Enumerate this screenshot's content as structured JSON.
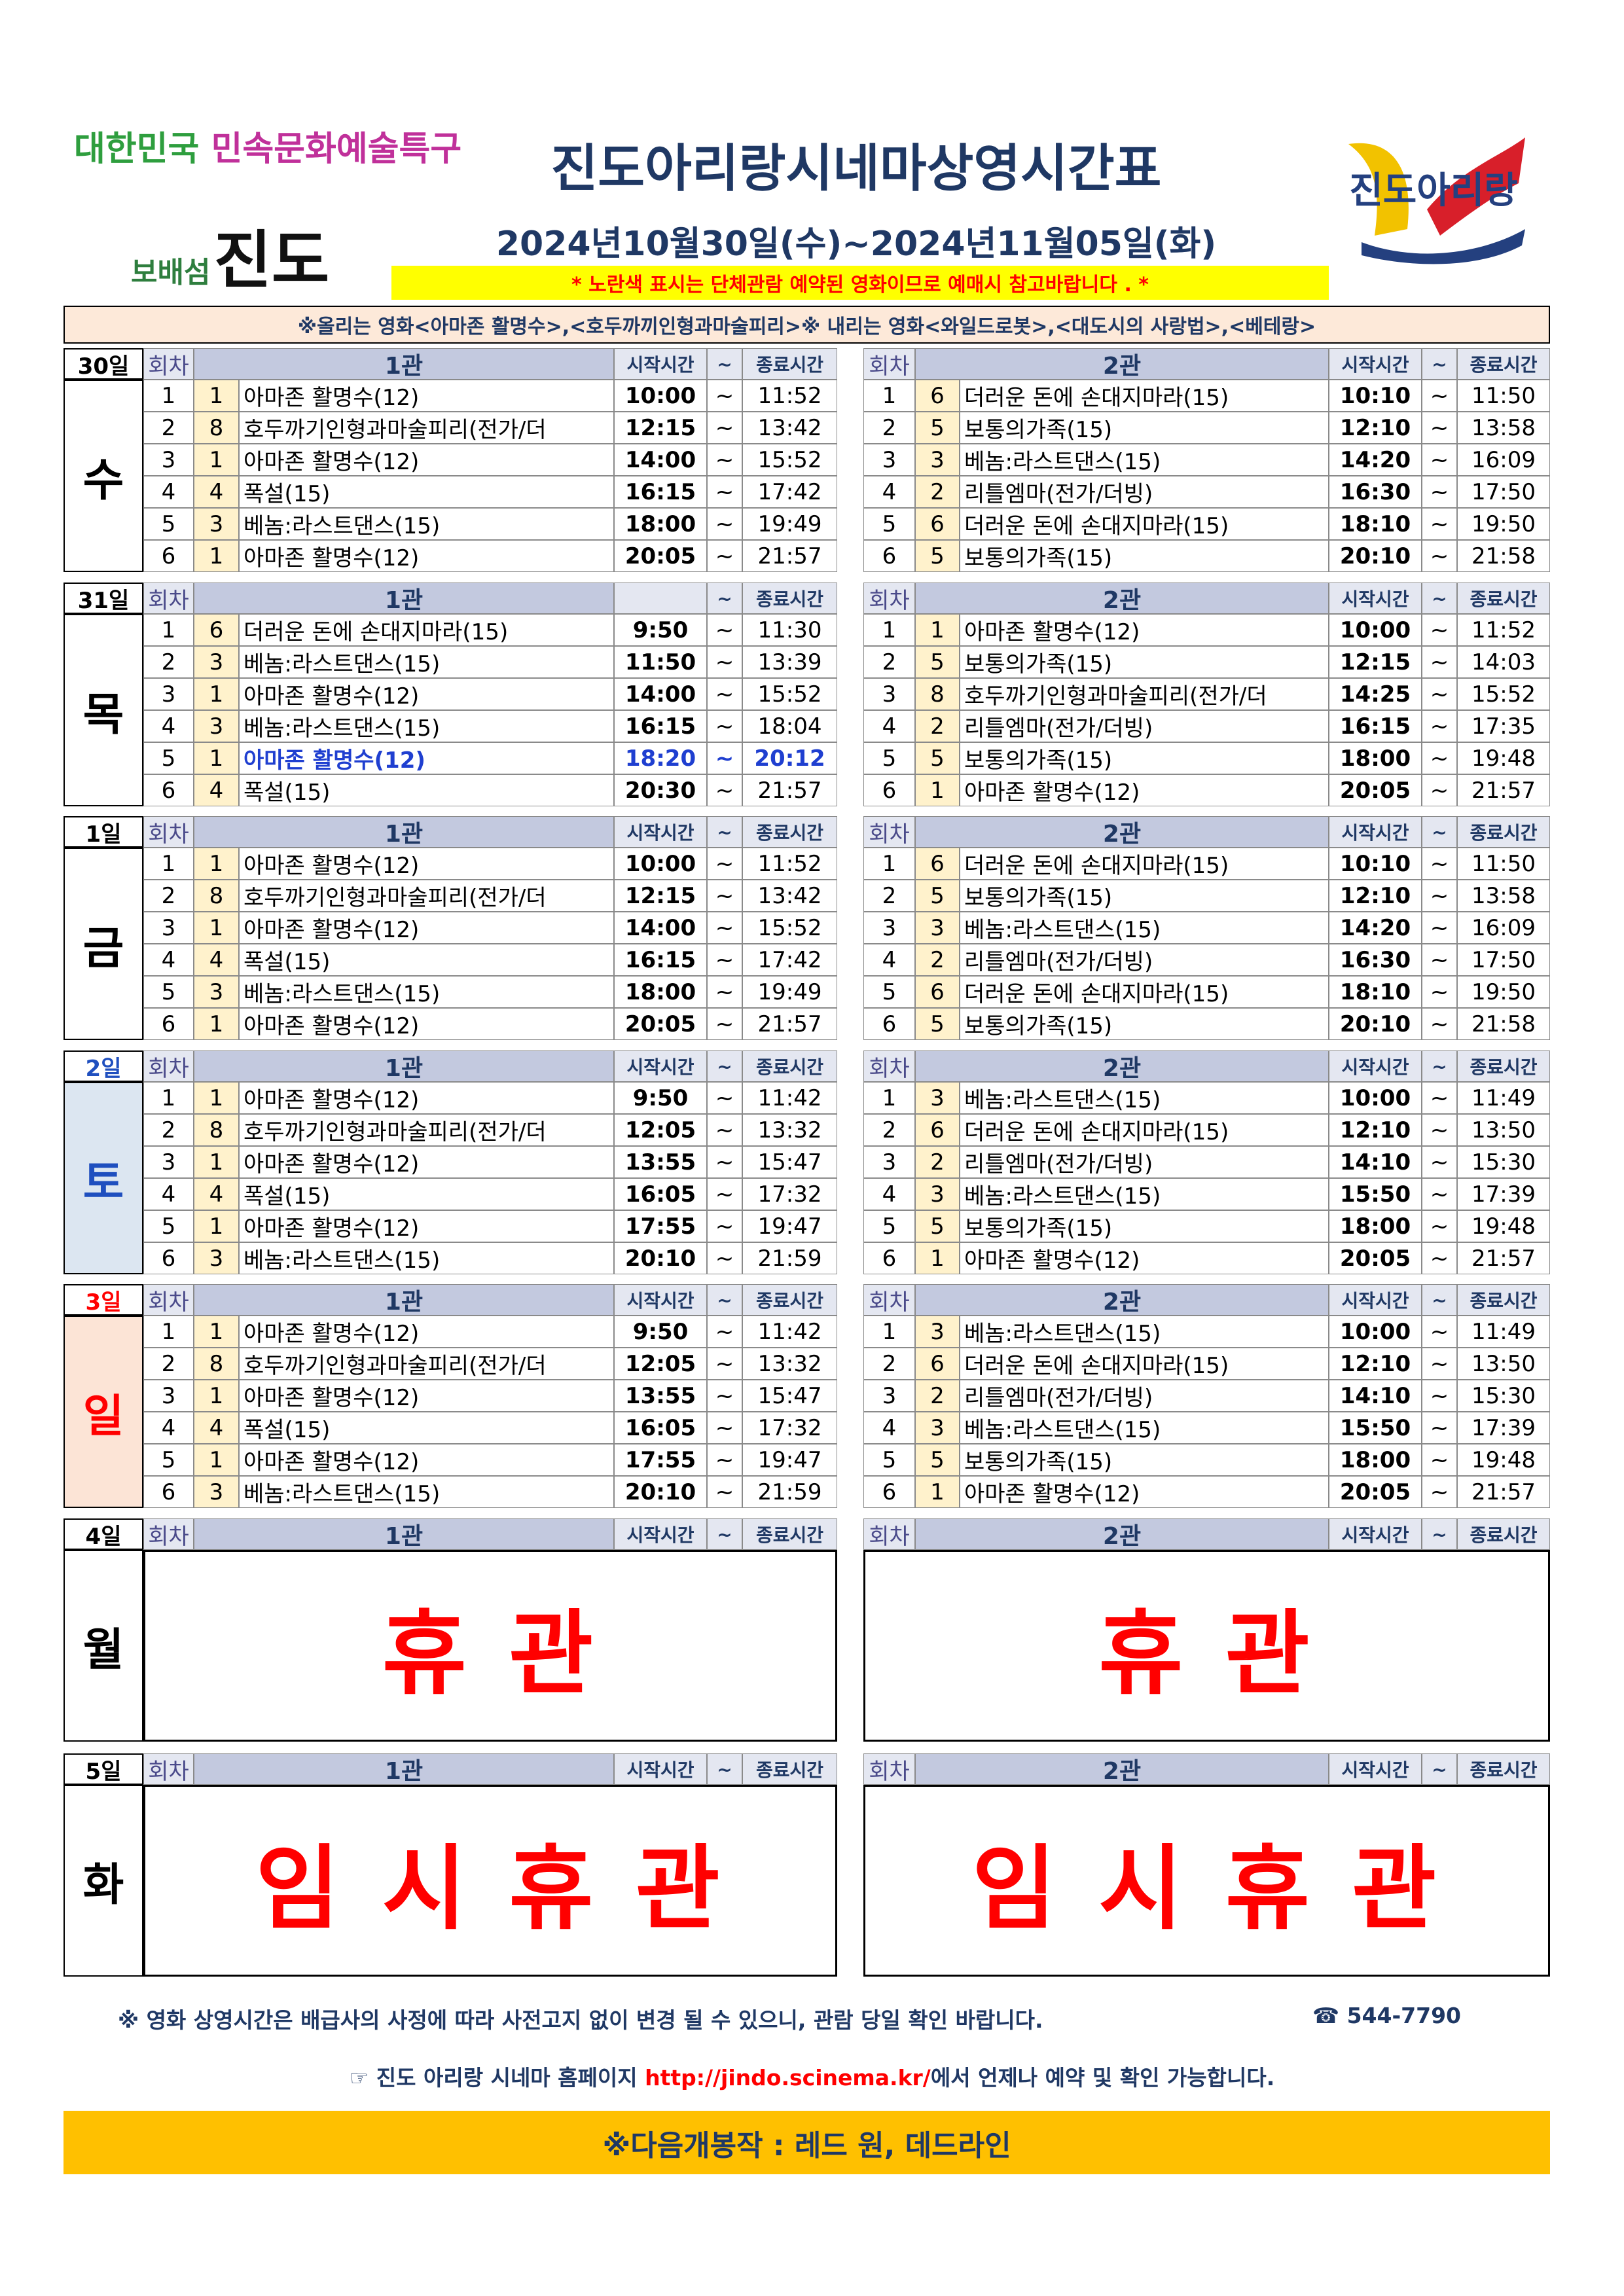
{
  "header": {
    "logo_left_line1a": "대한민국",
    "logo_left_line1b": "민속문화예술특구",
    "logo_left_line2a": "보배섬",
    "logo_left_line2b": "진도",
    "title": "진도아리랑시네마상영시간표",
    "dates": "2024년10월30일(수)~2024년11월05일(화)",
    "notice": "* 노란색 표시는 단체관람 예약된 영화이므로 예매시 참고바랍니다 . *",
    "logo_right": "진도아리랑"
  },
  "table": {
    "note": "※올리는 영화<아마존 활명수>,<호두까끼인형과마술피리>※ 내리는 영화<와일드로봇>,<대도시의 사랑법>,<베테랑>",
    "days": [
      {
        "date": "30일",
        "weekday": "수",
        "halls": [
          {
            "header": {
              "round": "회차",
              "name": "1관",
              "start": "시작시간",
              "tilde": "~",
              "end": "종료시간"
            },
            "rows": [
              [
                "1",
                "1",
                "아마존 활명수(12)",
                "10:00",
                "~",
                "11:52"
              ],
              [
                "2",
                "8",
                "호두까기인형과마술피리(전가/더",
                "12:15",
                "~",
                "13:42"
              ],
              [
                "3",
                "1",
                "아마존 활명수(12)",
                "14:00",
                "~",
                "15:52"
              ],
              [
                "4",
                "4",
                "폭설(15)",
                "16:15",
                "~",
                "17:42"
              ],
              [
                "5",
                "3",
                "베놈:라스트댄스(15)",
                "18:00",
                "~",
                "19:49"
              ],
              [
                "6",
                "1",
                "아마존 활명수(12)",
                "20:05",
                "~",
                "21:57"
              ]
            ]
          },
          {
            "header": {
              "round": "회차",
              "name": "2관",
              "start": "시작시간",
              "tilde": "~",
              "end": "종료시간"
            },
            "rows": [
              [
                "1",
                "6",
                "더러운 돈에 손대지마라(15)",
                "10:10",
                "~",
                "11:50"
              ],
              [
                "2",
                "5",
                "보통의가족(15)",
                "12:10",
                "~",
                "13:58"
              ],
              [
                "3",
                "3",
                "베놈:라스트댄스(15)",
                "14:20",
                "~",
                "16:09"
              ],
              [
                "4",
                "2",
                "리틀엠마(전가/더빙)",
                "16:30",
                "~",
                "17:50"
              ],
              [
                "5",
                "6",
                "더러운 돈에 손대지마라(15)",
                "18:10",
                "~",
                "19:50"
              ],
              [
                "6",
                "5",
                "보통의가족(15)",
                "20:10",
                "~",
                "21:58"
              ]
            ]
          }
        ]
      },
      {
        "date": "31일",
        "weekday": "목",
        "halls": [
          {
            "header": {
              "round": "회차",
              "name": "1관",
              "tilde": "~",
              "end": "종료시간"
            },
            "rows": [
              [
                "1",
                "6",
                "더러운 돈에 손대지마라(15)",
                "9:50",
                "~",
                "11:30"
              ],
              [
                "2",
                "3",
                "베놈:라스트댄스(15)",
                "11:50",
                "~",
                "13:39"
              ],
              [
                "3",
                "1",
                "아마존 활명수(12)",
                "14:00",
                "~",
                "15:52"
              ],
              [
                "4",
                "3",
                "베놈:라스트댄스(15)",
                "16:15",
                "~",
                "18:04"
              ],
              [
                "5",
                "1",
                "아마존 활명수(12)",
                "18:20",
                "~",
                "20:12"
              ],
              [
                "6",
                "4",
                "폭설(15)",
                "20:30",
                "~",
                "21:57"
              ]
            ]
          },
          {
            "header": {
              "round": "회차",
              "name": "2관",
              "start": "시작시간",
              "tilde": "~",
              "end": "종료시간"
            },
            "rows": [
              [
                "1",
                "1",
                "아마존 활명수(12)",
                "10:00",
                "~",
                "11:52"
              ],
              [
                "2",
                "5",
                "보통의가족(15)",
                "12:15",
                "~",
                "14:03"
              ],
              [
                "3",
                "8",
                "호두까기인형과마술피리(전가/더",
                "14:25",
                "~",
                "15:52"
              ],
              [
                "4",
                "2",
                "리틀엠마(전가/더빙)",
                "16:15",
                "~",
                "17:35"
              ],
              [
                "5",
                "5",
                "보통의가족(15)",
                "18:00",
                "~",
                "19:48"
              ],
              [
                "6",
                "1",
                "아마존 활명수(12)",
                "20:05",
                "~",
                "21:57"
              ]
            ]
          }
        ]
      },
      {
        "date": "1일",
        "weekday": "금",
        "halls": [
          {
            "header": {
              "round": "회차",
              "name": "1관",
              "start": "시작시간",
              "tilde": "~",
              "end": "종료시간"
            },
            "rows": [
              [
                "1",
                "1",
                "아마존 활명수(12)",
                "10:00",
                "~",
                "11:52"
              ],
              [
                "2",
                "8",
                "호두까기인형과마술피리(전가/더",
                "12:15",
                "~",
                "13:42"
              ],
              [
                "3",
                "1",
                "아마존 활명수(12)",
                "14:00",
                "~",
                "15:52"
              ],
              [
                "4",
                "4",
                "폭설(15)",
                "16:15",
                "~",
                "17:42"
              ],
              [
                "5",
                "3",
                "베놈:라스트댄스(15)",
                "18:00",
                "~",
                "19:49"
              ],
              [
                "6",
                "1",
                "아마존 활명수(12)",
                "20:05",
                "~",
                "21:57"
              ]
            ]
          },
          {
            "header": {
              "round": "회차",
              "name": "2관",
              "start": "시작시간",
              "tilde": "~",
              "end": "종료시간"
            },
            "rows": [
              [
                "1",
                "6",
                "더러운 돈에 손대지마라(15)",
                "10:10",
                "~",
                "11:50"
              ],
              [
                "2",
                "5",
                "보통의가족(15)",
                "12:10",
                "~",
                "13:58"
              ],
              [
                "3",
                "3",
                "베놈:라스트댄스(15)",
                "14:20",
                "~",
                "16:09"
              ],
              [
                "4",
                "2",
                "리틀엠마(전가/더빙)",
                "16:30",
                "~",
                "17:50"
              ],
              [
                "5",
                "6",
                "더러운 돈에 손대지마라(15)",
                "18:10",
                "~",
                "19:50"
              ],
              [
                "6",
                "5",
                "보통의가족(15)",
                "20:10",
                "~",
                "21:58"
              ]
            ]
          }
        ]
      },
      {
        "date": "2일",
        "weekday": "토",
        "color": "#1f4fbf",
        "background": "#dce6f1",
        "halls": [
          {
            "header": {
              "round": "회차",
              "name": "1관",
              "start": "시작시간",
              "tilde": "~",
              "end": "종료시간"
            },
            "rows": [
              [
                "1",
                "1",
                "아마존 활명수(12)",
                "9:50",
                "~",
                "11:42"
              ],
              [
                "2",
                "8",
                "호두까기인형과마술피리(전가/더",
                "12:05",
                "~",
                "13:32"
              ],
              [
                "3",
                "1",
                "아마존 활명수(12)",
                "13:55",
                "~",
                "15:47"
              ],
              [
                "4",
                "4",
                "폭설(15)",
                "16:05",
                "~",
                "17:32"
              ],
              [
                "5",
                "1",
                "아마존 활명수(12)",
                "17:55",
                "~",
                "19:47"
              ],
              [
                "6",
                "3",
                "베놈:라스트댄스(15)",
                "20:10",
                "~",
                "21:59"
              ]
            ]
          },
          {
            "header": {
              "round": "회차",
              "name": "2관",
              "start": "시작시간",
              "tilde": "~",
              "end": "종료시간"
            },
            "rows": [
              [
                "1",
                "3",
                "베놈:라스트댄스(15)",
                "10:00",
                "~",
                "11:49"
              ],
              [
                "2",
                "6",
                "더러운 돈에 손대지마라(15)",
                "12:10",
                "~",
                "13:50"
              ],
              [
                "3",
                "2",
                "리틀엠마(전가/더빙)",
                "14:10",
                "~",
                "15:30"
              ],
              [
                "4",
                "3",
                "베놈:라스트댄스(15)",
                "15:50",
                "~",
                "17:39"
              ],
              [
                "5",
                "5",
                "보통의가족(15)",
                "18:00",
                "~",
                "19:48"
              ],
              [
                "6",
                "1",
                "아마존 활명수(12)",
                "20:05",
                "~",
                "21:57"
              ]
            ]
          }
        ]
      },
      {
        "date": "3일",
        "weekday": "일",
        "color": "#ff0000",
        "background": "#fce4d6",
        "halls": [
          {
            "header": {
              "round": "회차",
              "name": "1관",
              "start": "시작시간",
              "tilde": "~",
              "end": "종료시간"
            },
            "rows": [
              [
                "1",
                "1",
                "아마존 활명수(12)",
                "9:50",
                "~",
                "11:42"
              ],
              [
                "2",
                "8",
                "호두까기인형과마술피리(전가/더",
                "12:05",
                "~",
                "13:32"
              ],
              [
                "3",
                "1",
                "아마존 활명수(12)",
                "13:55",
                "~",
                "15:47"
              ],
              [
                "4",
                "4",
                "폭설(15)",
                "16:05",
                "~",
                "17:32"
              ],
              [
                "5",
                "1",
                "아마존 활명수(12)",
                "17:55",
                "~",
                "19:47"
              ],
              [
                "6",
                "3",
                "베놈:라스트댄스(15)",
                "20:10",
                "~",
                "21:59"
              ]
            ]
          },
          {
            "header": {
              "round": "회차",
              "name": "2관",
              "start": "시작시간",
              "tilde": "~",
              "end": "종료시간"
            },
            "rows": [
              [
                "1",
                "3",
                "베놈:라스트댄스(15)",
                "10:00",
                "~",
                "11:49"
              ],
              [
                "2",
                "6",
                "더러운 돈에 손대지마라(15)",
                "12:10",
                "~",
                "13:50"
              ],
              [
                "3",
                "2",
                "리틀엠마(전가/더빙)",
                "14:10",
                "~",
                "15:30"
              ],
              [
                "4",
                "3",
                "베놈:라스트댄스(15)",
                "15:50",
                "~",
                "17:39"
              ],
              [
                "5",
                "5",
                "보통의가족(15)",
                "18:00",
                "~",
                "19:48"
              ],
              [
                "6",
                "1",
                "아마존 활명수(12)",
                "20:05",
                "~",
                "21:57"
              ]
            ]
          }
        ]
      },
      {
        "date": "4일",
        "weekday": "월",
        "halls": [
          {
            "header": {
              "round": "회차",
              "name": "1관",
              "start": "시작시간",
              "tilde": "~",
              "end": "종료시간"
            },
            "closed": "휴 관"
          },
          {
            "header": {
              "round": "회차",
              "name": "2관",
              "start": "시작시간",
              "tilde": "~",
              "end": "종료시간"
            },
            "closed": "휴 관"
          }
        ]
      },
      {
        "date": "5일",
        "weekday": "화",
        "halls": [
          {
            "header": {
              "round": "회차",
              "name": "1관",
              "start": "시작시간",
              "tilde": "~",
              "end": "종료시간"
            },
            "closed": "임 시 휴 관"
          },
          {
            "header": {
              "round": "회차",
              "name": "2관",
              "start": "시작시간",
              "tilde": "~",
              "end": "종료시간"
            },
            "closed": "임 시 휴 관"
          }
        ]
      }
    ]
  },
  "footer": {
    "notice": "※ 영화 상영시간은 배급사의 사정에 따라 사전고지 없이 변경 될 수 있으니, 관람 당일 확인 바랍니다.",
    "phone": "☎ 544-7790",
    "homepage_pre": "☞ 진도 아리랑 시네마 홈페이지",
    "homepage_url": "http://jindo.scinema.kr/",
    "homepage_post": "에서 언제나 예약 및 확인 가능합니다.",
    "next": "※다음개봉작 : 레드 원, 데드라인"
  }
}
